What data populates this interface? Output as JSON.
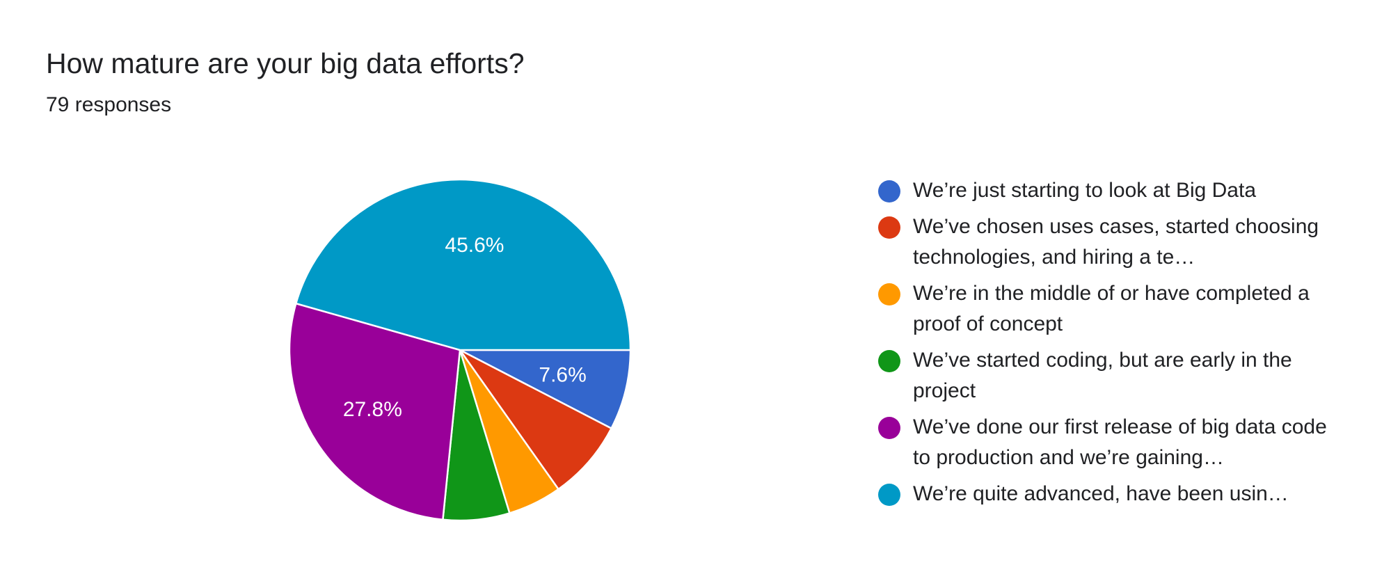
{
  "header": {
    "title": "How mature are your big data efforts?",
    "responses": "79 responses"
  },
  "chart_data": {
    "type": "pie",
    "title": "How mature are your big data efforts?",
    "subtitle": "79 responses",
    "legend_position": "right",
    "slices": [
      {
        "name": "We’re just starting to look at Big Data",
        "value": 7.6,
        "color": "#3366cc",
        "label": "7.6%"
      },
      {
        "name": "We’ve chosen uses cases, started choosing technologies, and hiring a te…",
        "value": 7.6,
        "color": "#dc3912",
        "label": ""
      },
      {
        "name": "We’re in the middle of or have completed a proof of concept",
        "value": 5.1,
        "color": "#ff9900",
        "label": ""
      },
      {
        "name": "We’ve started coding, but are early in the project",
        "value": 6.3,
        "color": "#109618",
        "label": ""
      },
      {
        "name": "We’ve done our first release of big data code to production and we’re gaining…",
        "value": 27.8,
        "color": "#990099",
        "label": "27.8%"
      },
      {
        "name": "We’re quite advanced, have been usin…",
        "value": 45.6,
        "color": "#0099c6",
        "label": "45.6%"
      }
    ]
  }
}
